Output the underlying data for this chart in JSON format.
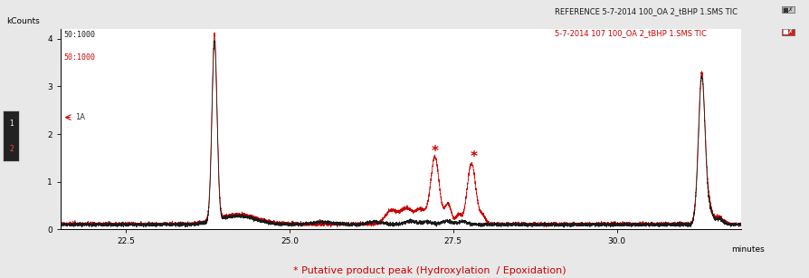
{
  "xlabel": "minutes",
  "ylabel": "kCounts",
  "xlim": [
    21.5,
    31.9
  ],
  "ylim": [
    0,
    4.2
  ],
  "yticks": [
    0,
    1,
    2,
    3,
    4
  ],
  "xticks": [
    22.5,
    25.0,
    27.5,
    30.0
  ],
  "legend_black": "REFERENCE 5-7-2014 100_OA 2_tBHP 1.SMS TIC",
  "legend_red": "5-7-2014 107 100_OA 2_tBHP 1.SMS TIC",
  "annotation": "* Putative product peak (Hydroxylation  / Epoxidation)",
  "star1_x": 27.22,
  "star1_y": 1.48,
  "star2_x": 27.82,
  "star2_y": 1.38,
  "scale_label_black": "50:1000",
  "scale_label_red": "50:1000",
  "label_1A": "1A",
  "background_color": "#e8e8e8",
  "plot_bg_color": "#ffffff",
  "black_line_color": "#1a1a1a",
  "red_line_color": "#cc0000",
  "side_box_color": "#222222",
  "side_box_red_color": "#cc0000"
}
